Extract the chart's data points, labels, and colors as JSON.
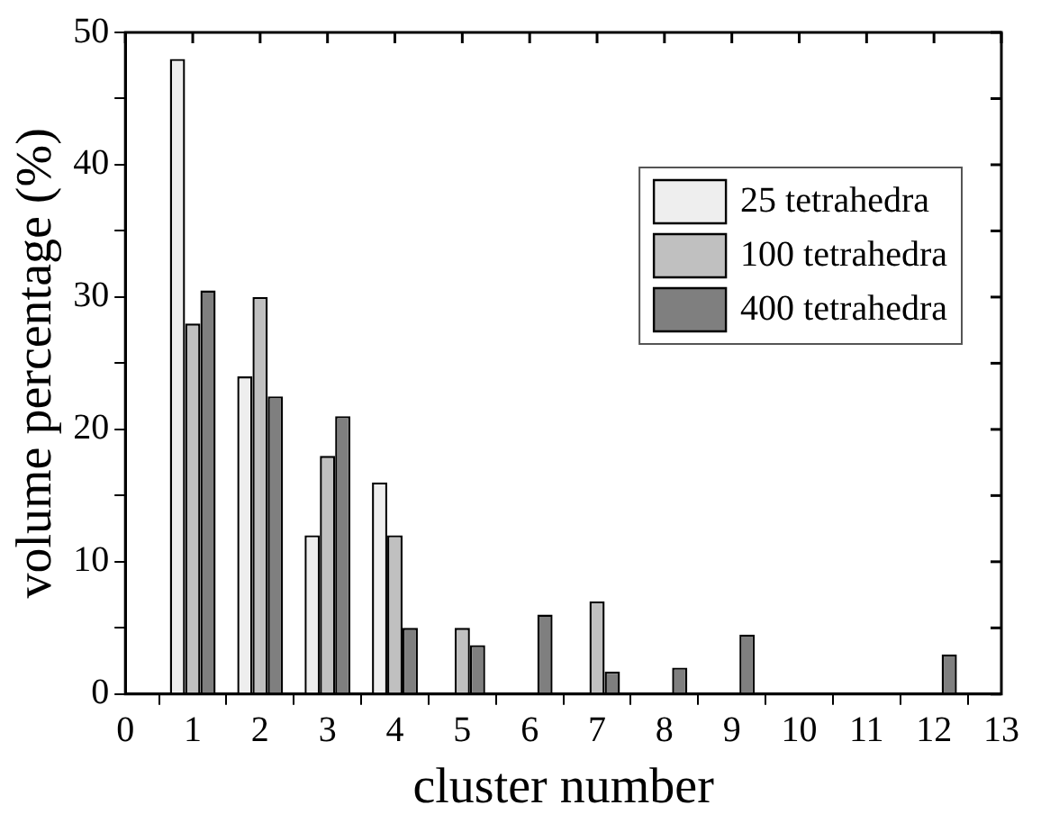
{
  "chart_data": {
    "type": "bar",
    "xlabel": "cluster number",
    "ylabel": "volume percentage (%)",
    "x": [
      1,
      2,
      3,
      4,
      5,
      6,
      7,
      8,
      9,
      12
    ],
    "series": [
      {
        "name": "25 tetrahedra",
        "color": "#eeeeee",
        "values": [
          48,
          24,
          12,
          16,
          null,
          null,
          null,
          null,
          null,
          null
        ]
      },
      {
        "name": "100 tetrahedra",
        "color": "#c0c0c0",
        "values": [
          28,
          30,
          18,
          12,
          5,
          null,
          7,
          null,
          null,
          null
        ]
      },
      {
        "name": "400 tetrahedra",
        "color": "#7f7f7f",
        "values": [
          30.5,
          22.5,
          21,
          5,
          3.7,
          6,
          1.7,
          2,
          4.5,
          3
        ]
      }
    ],
    "xlim": [
      0,
      13
    ],
    "xticks": [
      0,
      1,
      2,
      3,
      4,
      5,
      6,
      7,
      8,
      9,
      10,
      11,
      12,
      13
    ],
    "ylim": [
      0,
      50
    ],
    "yticks": [
      0,
      {
        "value": 5,
        "label": null
      },
      10,
      {
        "value": 15,
        "label": null
      },
      20,
      {
        "value": 25,
        "label": null
      },
      30,
      {
        "value": 35,
        "label": null
      },
      40,
      {
        "value": 45,
        "label": null
      },
      50
    ],
    "grid": false,
    "legend": "top right"
  }
}
